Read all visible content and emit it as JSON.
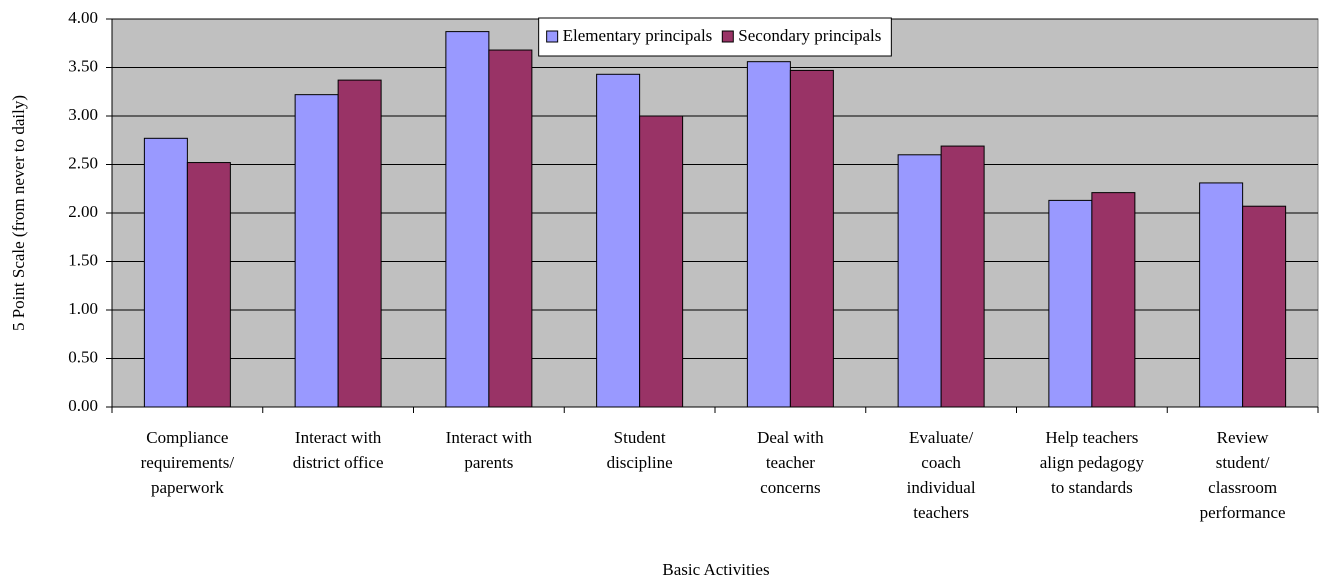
{
  "chart_data": {
    "type": "bar",
    "categories": [
      "Compliance\nrequirements/\npaperwork",
      "Interact with\ndistrict office",
      "Interact with\nparents",
      "Student\ndiscipline",
      "Deal with\nteacher\nconcerns",
      "Evaluate/\ncoach\nindividual\nteachers",
      "Help teachers\nalign pedagogy\nto standards",
      "Review\nstudent/\nclassroom\nperformance"
    ],
    "series": [
      {
        "name": "Elementary principals",
        "color": "#9999ff",
        "values": [
          2.77,
          3.22,
          3.87,
          3.43,
          3.56,
          2.6,
          2.13,
          2.31
        ]
      },
      {
        "name": "Secondary principals",
        "color": "#993366",
        "values": [
          2.52,
          3.37,
          3.68,
          3.0,
          3.47,
          2.69,
          2.21,
          2.07
        ]
      }
    ],
    "ylabel": "5 Point Scale (from never to daily)",
    "xlabel": "Basic Activities",
    "ylim": [
      0,
      4
    ],
    "yticks": [
      {
        "value": 0,
        "label": "0.00"
      },
      {
        "value": 0.5,
        "label": "0.50"
      },
      {
        "value": 1,
        "label": "1.00"
      },
      {
        "value": 1.5,
        "label": "1.50"
      },
      {
        "value": 2,
        "label": "2.00"
      },
      {
        "value": 2.5,
        "label": "2.50"
      },
      {
        "value": 3,
        "label": "3.00"
      },
      {
        "value": 3.5,
        "label": "3.50"
      },
      {
        "value": 4,
        "label": "4.00"
      }
    ],
    "grid": true,
    "legend": "top",
    "plot_background": "#c0c0c0"
  }
}
